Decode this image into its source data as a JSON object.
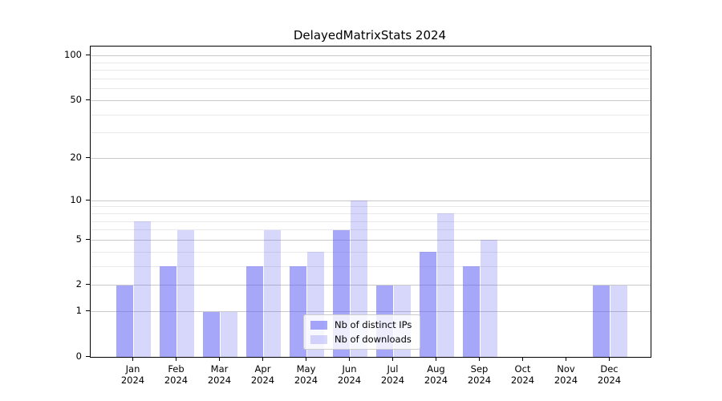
{
  "chart_data": {
    "type": "bar",
    "title": "DelayedMatrixStats 2024",
    "scale": "log1p",
    "categories": [
      "Jan",
      "Feb",
      "Mar",
      "Apr",
      "May",
      "Jun",
      "Jul",
      "Aug",
      "Sep",
      "Oct",
      "Nov",
      "Dec"
    ],
    "category_year": "2024",
    "series": [
      {
        "name": "Nb of distinct IPs",
        "values": [
          2,
          3,
          1,
          3,
          3,
          6,
          2,
          4,
          3,
          0,
          0,
          2
        ],
        "color": "rgba(95,95,245,0.55)"
      },
      {
        "name": "Nb of downloads",
        "values": [
          7,
          6,
          1,
          6,
          4,
          10,
          2,
          8,
          5,
          0,
          0,
          2
        ],
        "color": "rgba(95,95,245,0.25)"
      }
    ],
    "y_axis": {
      "tick_labels": [
        0,
        1,
        2,
        5,
        10,
        20,
        50,
        100
      ],
      "major_gridlines": [
        1,
        2,
        5,
        10,
        20,
        50,
        100
      ],
      "minor_gridlines": [
        3,
        4,
        6,
        7,
        8,
        9,
        30,
        40,
        60,
        70,
        80,
        90
      ],
      "top_value": 116
    },
    "legend": {
      "position": "lower center"
    },
    "grid": true,
    "colors": {
      "major_grid": "#c9c9c9",
      "minor_grid": "#e9e9e9",
      "spine": "#000000",
      "text": "#000000"
    }
  }
}
